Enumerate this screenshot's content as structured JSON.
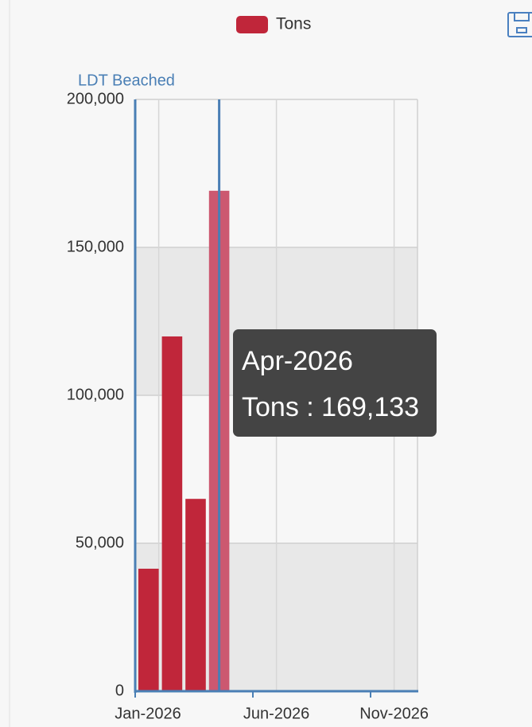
{
  "chart_data": {
    "type": "bar",
    "y_axis_title": "LDT Beached",
    "categories": [
      "Jan-2026",
      null,
      null,
      "Apr-2026",
      null,
      "Jun-2026",
      null,
      null,
      null,
      null,
      "Nov-2026",
      null
    ],
    "series": [
      {
        "name": "Tons",
        "color": "#c0263a",
        "hover_color": "#cc5870",
        "values": [
          41400,
          119900,
          65000,
          169133,
          null,
          null,
          null,
          null,
          null,
          null,
          null,
          null
        ],
        "value_labels": [
          null,
          null,
          null,
          "169,133",
          null,
          null,
          null,
          null,
          null,
          null,
          null,
          null
        ]
      }
    ],
    "ylim": [
      0,
      200000
    ],
    "yticks": [
      0,
      {
        "value": 50000,
        "label": "50,000"
      },
      {
        "value": 100000,
        "label": "100,000"
      },
      {
        "value": 150000,
        "label": "150,000"
      },
      {
        "value": 200000,
        "label": "200,000"
      }
    ],
    "grid": true,
    "legend": "top",
    "tooltip": {
      "index": 3,
      "separator": " : "
    }
  }
}
